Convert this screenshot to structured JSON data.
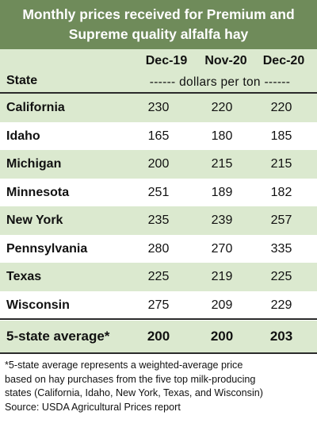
{
  "title_line1": "Monthly prices received for Premium and",
  "title_line2": "Supreme quality alfalfa hay",
  "chart_data": {
    "type": "table",
    "columns": [
      "Dec-19",
      "Nov-20",
      "Dec-20"
    ],
    "row_header": "State",
    "units": "------ dollars per ton ------",
    "rows": [
      {
        "state": "California",
        "values": [
          230,
          220,
          220
        ]
      },
      {
        "state": "Idaho",
        "values": [
          165,
          180,
          185
        ]
      },
      {
        "state": "Michigan",
        "values": [
          200,
          215,
          215
        ]
      },
      {
        "state": "Minnesota",
        "values": [
          251,
          189,
          182
        ]
      },
      {
        "state": "New York",
        "values": [
          235,
          239,
          257
        ]
      },
      {
        "state": "Pennsylvania",
        "values": [
          280,
          270,
          335
        ]
      },
      {
        "state": "Texas",
        "values": [
          225,
          219,
          225
        ]
      },
      {
        "state": "Wisconsin",
        "values": [
          275,
          209,
          229
        ]
      }
    ],
    "average": {
      "label": "5-state average*",
      "values": [
        200,
        200,
        203
      ]
    }
  },
  "footnote_lines": [
    "*5-state average represents  a weighted-average price",
    "based on hay purchases from the five top milk-producing",
    "states (California, Idaho, New York, Texas, and Wisconsin)",
    "Source: USDA Agricultural Prices report"
  ],
  "colors": {
    "title_bg": "#6f8b5a",
    "shade": "#dbe9cf",
    "rule": "#2b2b2b"
  }
}
